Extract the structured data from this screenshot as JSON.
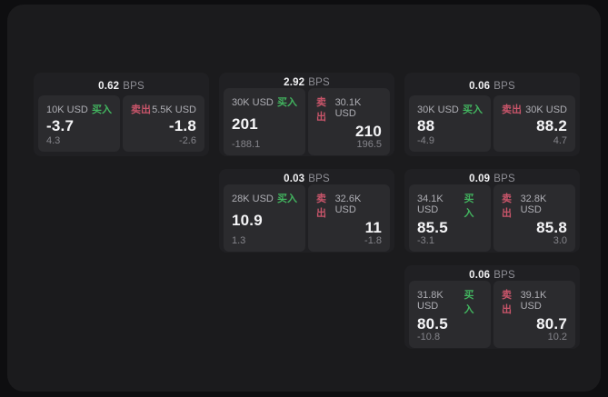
{
  "labels": {
    "bps": "BPS",
    "buy": "买入",
    "sell": "卖出"
  },
  "colors": {
    "buy": "#42b45f",
    "sell": "#c9556a",
    "panel_bg": "#1b1b1d",
    "card_bg": "#202023",
    "tile_bg": "#2b2b2e",
    "page_bg": "#0e0e10"
  },
  "cards": [
    {
      "col": 1,
      "row": 1,
      "bps": "0.62",
      "buy": {
        "size": "10K USD",
        "price": "-3.7",
        "sub": "4.3"
      },
      "sell": {
        "size": "5.5K USD",
        "price": "-1.8",
        "sub": "-2.6"
      }
    },
    {
      "col": 2,
      "row": 1,
      "bps": "2.92",
      "buy": {
        "size": "30K USD",
        "price": "201",
        "sub": "-188.1"
      },
      "sell": {
        "size": "30.1K USD",
        "price": "210",
        "sub": "196.5"
      }
    },
    {
      "col": 3,
      "row": 1,
      "bps": "0.06",
      "buy": {
        "size": "30K USD",
        "price": "88",
        "sub": "-4.9"
      },
      "sell": {
        "size": "30K USD",
        "price": "88.2",
        "sub": "4.7"
      }
    },
    {
      "col": 2,
      "row": 2,
      "bps": "0.03",
      "buy": {
        "size": "28K USD",
        "price": "10.9",
        "sub": "1.3"
      },
      "sell": {
        "size": "32.6K USD",
        "price": "11",
        "sub": "-1.8"
      }
    },
    {
      "col": 3,
      "row": 2,
      "bps": "0.09",
      "buy": {
        "size": "34.1K USD",
        "price": "85.5",
        "sub": "-3.1"
      },
      "sell": {
        "size": "32.8K USD",
        "price": "85.8",
        "sub": "3.0"
      }
    },
    {
      "col": 3,
      "row": 3,
      "bps": "0.06",
      "buy": {
        "size": "31.8K USD",
        "price": "80.5",
        "sub": "-10.8"
      },
      "sell": {
        "size": "39.1K USD",
        "price": "80.7",
        "sub": "10.2"
      }
    }
  ]
}
